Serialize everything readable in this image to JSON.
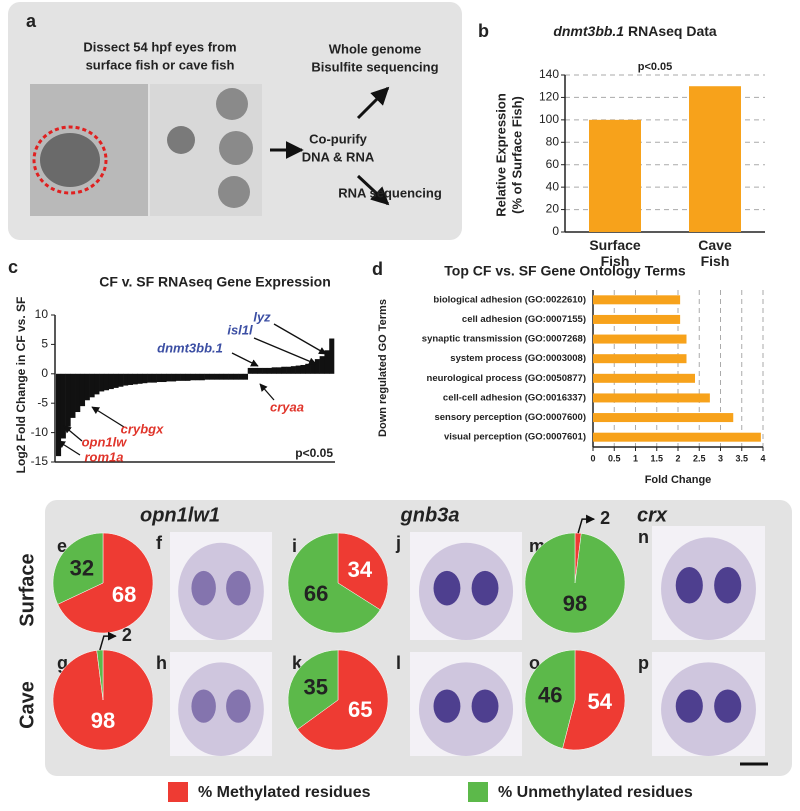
{
  "panel_a": {
    "label": "a",
    "step1": [
      "Dissect 54 hpf eyes from",
      "surface fish or cave fish"
    ],
    "step2": [
      "Co-purify",
      "DNA & RNA"
    ],
    "output1": [
      "Whole genome",
      "Bisulfite sequencing"
    ],
    "output2": "RNA sequencing"
  },
  "chart_data": [
    {
      "type": "bar",
      "panel": "b",
      "title": [
        "dnmt3bb.1",
        "RNAseq Data"
      ],
      "annotation": "p<0.05",
      "ylabel": [
        "Relative Expression",
        "(% of Surface Fish)"
      ],
      "categories": [
        "Surface Fish",
        "Cave Fish"
      ],
      "values": [
        100,
        130
      ],
      "color": "#f7a21b",
      "ylim": [
        0,
        140
      ],
      "yticks": [
        0,
        20,
        40,
        60,
        80,
        100,
        120,
        140
      ],
      "grid": true
    },
    {
      "type": "waterfall",
      "panel": "c",
      "title": "CF v. SF RNAseq Gene Expression",
      "ylabel": "Log2 Fold Change in CF vs. SF",
      "annotation": "p<0.05",
      "color": "#111111",
      "ylim": [
        -15,
        10
      ],
      "yticks": [
        -15,
        -10,
        -5,
        0,
        5,
        10
      ],
      "values": [
        -14,
        -11,
        -9,
        -7.5,
        -6.5,
        -5.5,
        -4.5,
        -4,
        -3.5,
        -3,
        -2.8,
        -2.6,
        -2.4,
        -2.2,
        -2,
        -1.9,
        -1.8,
        -1.7,
        -1.6,
        -1.5,
        -1.5,
        -1.4,
        -1.4,
        -1.3,
        -1.3,
        -1.2,
        -1.2,
        -1.2,
        -1.1,
        -1.1,
        -1.1,
        -1,
        -1,
        -1,
        -1,
        -1,
        -1,
        -1,
        -1,
        -1,
        1,
        1,
        1,
        1,
        1,
        1.1,
        1.1,
        1.2,
        1.2,
        1.3,
        1.4,
        1.5,
        1.7,
        2,
        2.5,
        3,
        4,
        6
      ],
      "genes": [
        {
          "name": "lyz",
          "color": "#3b4ea3"
        },
        {
          "name": "isl1l",
          "color": "#3b4ea3"
        },
        {
          "name": "dnmt3bb.1",
          "color": "#3b4ea3"
        },
        {
          "name": "cryaa",
          "color": "#e0352b"
        },
        {
          "name": "crybgx",
          "color": "#e0352b"
        },
        {
          "name": "opn1lw",
          "color": "#e0352b"
        },
        {
          "name": "rom1a",
          "color": "#e0352b"
        }
      ]
    },
    {
      "type": "hbar",
      "panel": "d",
      "title": "Top CF vs. SF Gene Ontology Terms",
      "ylabel": "Down regulated GO Terms",
      "xlabel": "Fold Change",
      "color": "#f7a21b",
      "categories": [
        "biological adhesion (GO:0022610)",
        "cell adhesion (GO:0007155)",
        "synaptic transmission (GO:0007268)",
        "system process (GO:0003008)",
        "neurological process (GO:0050877)",
        "cell-cell adhesion (GO:0016337)",
        "sensory perception (GO:0007600)",
        "visual perception (GO:0007601)"
      ],
      "values": [
        2.05,
        2.05,
        2.2,
        2.2,
        2.4,
        2.75,
        3.3,
        3.95
      ],
      "xlim": [
        0,
        4
      ],
      "xticks": [
        0,
        0.5,
        1,
        1.5,
        2,
        2.5,
        3,
        3.5,
        4
      ],
      "grid": true
    },
    {
      "type": "pie",
      "genes": [
        "opn1lw1",
        "gnb3a",
        "crx"
      ],
      "rows": [
        "Surface",
        "Cave"
      ],
      "series_names": [
        "% Methylated residues",
        "% Unmethylated residues"
      ],
      "colors": [
        "#ee3b33",
        "#5cb94a"
      ],
      "pies": [
        {
          "panel": "e",
          "values": [
            68,
            32
          ]
        },
        {
          "panel": "g",
          "values": [
            98,
            2
          ]
        },
        {
          "panel": "i",
          "values": [
            34,
            66
          ]
        },
        {
          "panel": "k",
          "values": [
            65,
            35
          ]
        },
        {
          "panel": "m",
          "values": [
            2,
            98
          ]
        },
        {
          "panel": "o",
          "values": [
            54,
            46
          ]
        }
      ],
      "images": [
        "f",
        "h",
        "j",
        "l",
        "n",
        "p"
      ]
    }
  ]
}
